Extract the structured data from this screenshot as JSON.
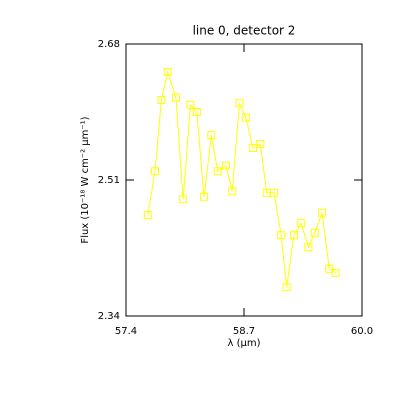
{
  "chart_data": {
    "type": "line",
    "title": "line 0, detector 2",
    "xlabel": "λ (μm)",
    "ylabel": "Flux (10⁻¹⁸ W cm⁻² μm⁻¹)",
    "x": [
      57.64,
      57.72,
      57.79,
      57.86,
      57.95,
      58.03,
      58.11,
      58.18,
      58.26,
      58.34,
      58.41,
      58.5,
      58.57,
      58.65,
      58.72,
      58.8,
      58.88,
      58.95,
      59.03,
      59.11,
      59.17,
      59.25,
      59.33,
      59.41,
      59.48,
      59.56,
      59.64,
      59.71
    ],
    "series": [
      {
        "color": "#ffff00",
        "values": [
          2.466,
          2.521,
          2.61,
          2.645,
          2.613,
          2.486,
          2.604,
          2.595,
          2.489,
          2.566,
          2.521,
          2.528,
          2.496,
          2.606,
          2.588,
          2.55,
          2.555,
          2.494,
          2.494,
          2.441,
          2.376,
          2.441,
          2.456,
          2.426,
          2.444,
          2.469,
          2.399,
          2.394
        ]
      }
    ],
    "xlim": [
      57.4,
      60.0
    ],
    "xticks": [
      57.4,
      58.7,
      {
        "value": 60.0,
        "label": "60.0"
      }
    ],
    "ylim": [
      2.34,
      2.68
    ],
    "yticks": [
      2.34,
      2.51,
      2.68
    ],
    "grid": false
  }
}
